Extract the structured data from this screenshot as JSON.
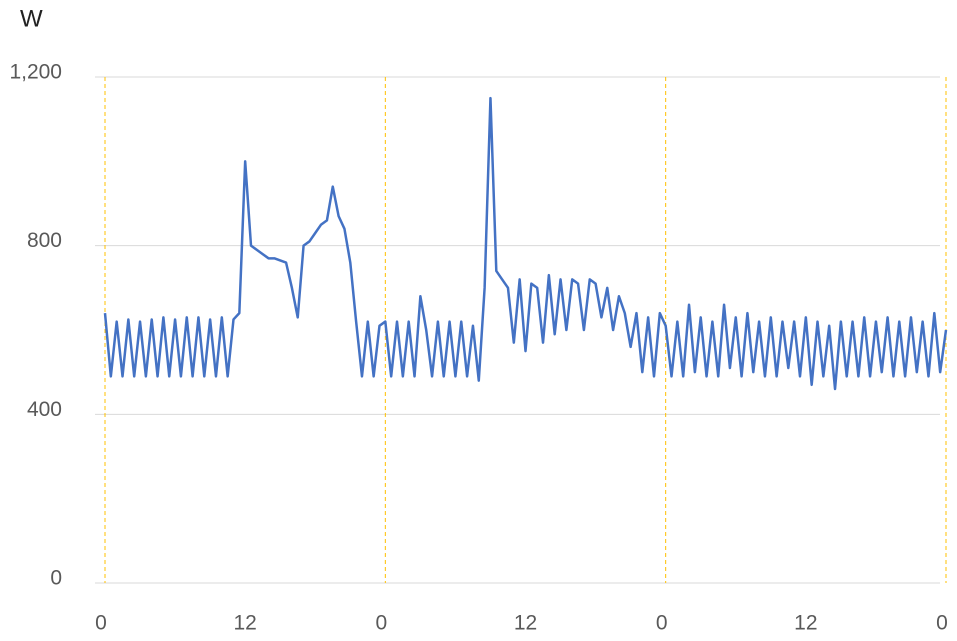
{
  "chart_data": {
    "type": "line",
    "ylabel": "W",
    "x": [
      0,
      0.5,
      1,
      1.5,
      2,
      2.5,
      3,
      3.5,
      4,
      4.5,
      5,
      5.5,
      6,
      6.5,
      7,
      7.5,
      8,
      8.5,
      9,
      9.5,
      10,
      10.5,
      11,
      11.5,
      12,
      12.5,
      13,
      13.5,
      14,
      14.5,
      15,
      15.5,
      16,
      16.5,
      17,
      17.5,
      18,
      18.5,
      19,
      19.5,
      20,
      20.5,
      21,
      21.5,
      22,
      22.5,
      23,
      23.5,
      24,
      24.5,
      25,
      25.5,
      26,
      26.5,
      27,
      27.5,
      28,
      28.5,
      29,
      29.5,
      30,
      30.5,
      31,
      31.5,
      32,
      32.5,
      33,
      33.5,
      34,
      34.5,
      35,
      35.5,
      36,
      36.5,
      37,
      37.5,
      38,
      38.5,
      39,
      39.5,
      40,
      40.5,
      41,
      41.5,
      42,
      42.5,
      43,
      43.5,
      44,
      44.5,
      45,
      45.5,
      46,
      46.5,
      47,
      47.5,
      48,
      48.5,
      49,
      49.5,
      50,
      50.5,
      51,
      51.5,
      52,
      52.5,
      53,
      53.5,
      54,
      54.5,
      55,
      55.5,
      56,
      56.5,
      57,
      57.5,
      58,
      58.5,
      59,
      59.5,
      60,
      60.5,
      61,
      61.5,
      62,
      62.5,
      63,
      63.5,
      64,
      64.5,
      65,
      65.5,
      66,
      66.5,
      67,
      67.5,
      68,
      68.5,
      69,
      69.5,
      70,
      70.5,
      71,
      71.5,
      72
    ],
    "series": [
      {
        "color": "#4472c4",
        "values": [
          640,
          490,
          620,
          490,
          625,
          490,
          620,
          490,
          625,
          490,
          630,
          490,
          625,
          490,
          630,
          490,
          630,
          490,
          625,
          490,
          630,
          490,
          625,
          640,
          1000,
          800,
          790,
          780,
          770,
          770,
          765,
          760,
          700,
          630,
          800,
          810,
          830,
          850,
          860,
          940,
          870,
          840,
          760,
          620,
          490,
          620,
          490,
          610,
          620,
          490,
          620,
          490,
          620,
          490,
          680,
          600,
          490,
          620,
          490,
          620,
          490,
          620,
          490,
          610,
          480,
          700,
          1150,
          740,
          720,
          700,
          570,
          720,
          550,
          710,
          700,
          570,
          730,
          590,
          720,
          600,
          720,
          710,
          600,
          720,
          710,
          630,
          700,
          600,
          680,
          640,
          560,
          640,
          500,
          630,
          490,
          640,
          610,
          490,
          620,
          490,
          660,
          500,
          630,
          490,
          620,
          490,
          660,
          510,
          630,
          490,
          640,
          500,
          620,
          490,
          630,
          490,
          620,
          510,
          620,
          490,
          630,
          470,
          620,
          490,
          610,
          460,
          620,
          490,
          620,
          490,
          630,
          490,
          620,
          500,
          630,
          490,
          620,
          490,
          630,
          500,
          620,
          490,
          640,
          500,
          600
        ]
      }
    ],
    "xlim": [
      0,
      72
    ],
    "xticks": [
      0,
      {
        "value": 24,
        "label": "0"
      },
      {
        "value": 48,
        "label": "0"
      },
      {
        "value": 72,
        "label": "0"
      }
    ],
    "xminorticks": [
      12,
      {
        "value": 36,
        "label": "12"
      },
      {
        "value": 60,
        "label": "12"
      }
    ],
    "ylim": [
      0,
      1200
    ],
    "yticks": [
      0,
      400,
      800,
      {
        "value": 1200,
        "label": "1,200"
      }
    ],
    "grid": true,
    "xgrid_color": "#ffc000",
    "ygrid_color": "#d9d9d9"
  }
}
